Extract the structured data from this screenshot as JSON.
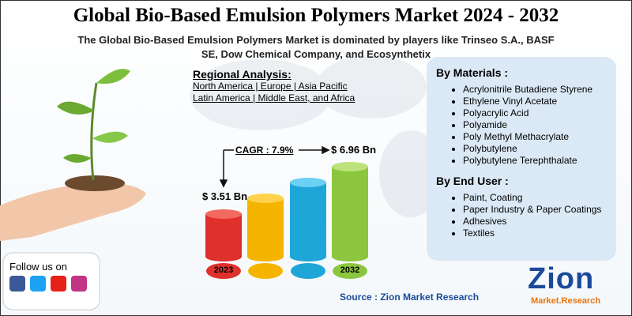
{
  "header": {
    "title": "Global Bio-Based Emulsion Polymers Market 2024 - 2032",
    "subtitle": "The Global Bio-Based Emulsion Polymers Market is dominated by players like Trinseo S.A., BASF SE, Dow Chemical Company, and Ecosynthetix"
  },
  "regional": {
    "heading": "Regional Analysis:",
    "lines": [
      "North America | Europe | Asia Pacific",
      "Latin America | Middle East, and Africa"
    ]
  },
  "growth": {
    "cagr": "CAGR : 7.9%",
    "start_value": "$ 3.51 Bn",
    "end_value": "$ 6.96 Bn",
    "start_year": "2023",
    "end_year": "2032"
  },
  "segments": [
    {
      "heading": "By Materials :",
      "items": [
        "Acrylonitrile Butadiene Styrene",
        "Ethylene Vinyl Acetate",
        "Polyacrylic Acid",
        "Polyamide",
        "Poly Methyl Methacrylate",
        "Polybutylene",
        "Polybutylene Terephthalate"
      ]
    },
    {
      "heading": "By End User :",
      "items": [
        "Paint, Coating",
        "Paper Industry & Paper Coatings",
        "Adhesives",
        "Textiles"
      ]
    }
  ],
  "footer": {
    "follow": "Follow us on",
    "source": "Source : Zion Market Research",
    "logo_main": "Zion",
    "logo_sub": "Market.Research"
  }
}
